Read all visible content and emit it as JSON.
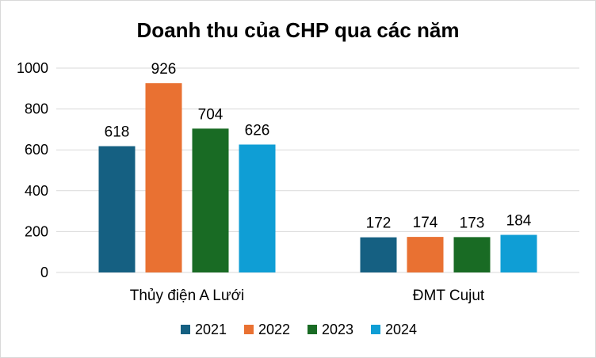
{
  "chart_data": {
    "type": "bar",
    "title": "Doanh thu của CHP qua các năm",
    "categories": [
      "Thủy điện A Lưới",
      "ĐMT Cujut"
    ],
    "series": [
      {
        "name": "2021",
        "color": "#156082",
        "values": [
          618,
          172
        ]
      },
      {
        "name": "2022",
        "color": "#E97132",
        "values": [
          926,
          174
        ]
      },
      {
        "name": "2023",
        "color": "#196B24",
        "values": [
          704,
          173
        ]
      },
      {
        "name": "2024",
        "color": "#0F9ED5",
        "values": [
          626,
          184
        ]
      }
    ],
    "ylim": [
      0,
      1000
    ],
    "yticks": [
      0,
      200,
      400,
      600,
      800,
      1000
    ],
    "grid": true,
    "legend": "bottom",
    "data_labels": true
  }
}
